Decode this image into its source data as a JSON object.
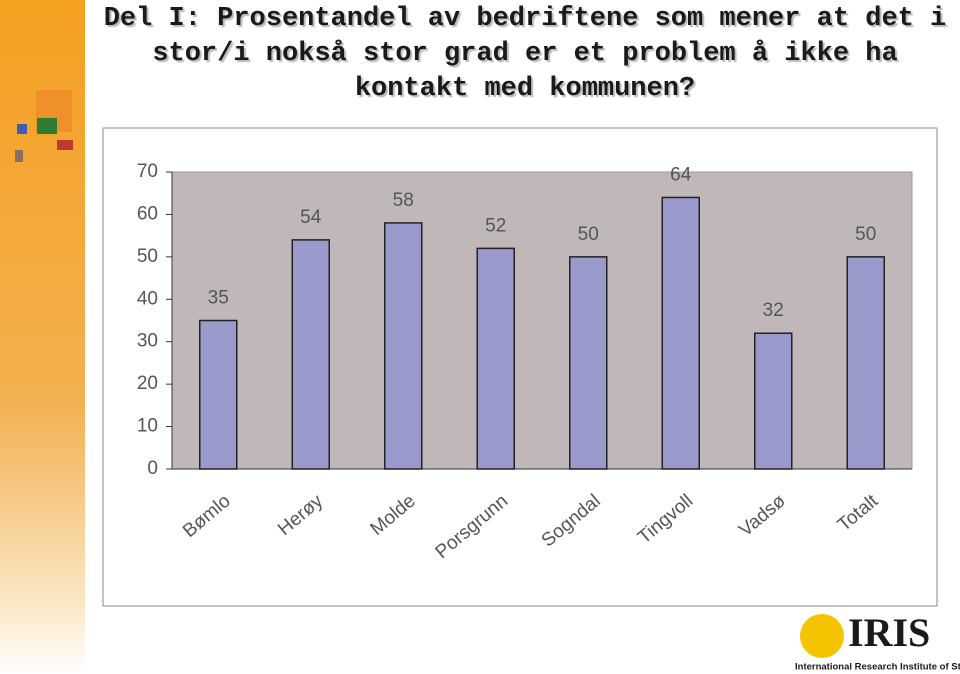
{
  "slide_title": "Del I: Prosentandel av bedriftene som mener at det i stor/i nokså stor grad er et problem å ikke ha kontakt med kommunen?",
  "chart_data": {
    "type": "bar",
    "categories": [
      "Bømlo",
      "Herøy",
      "Molde",
      "Porsgrunn",
      "Sogndal",
      "Tingvoll",
      "Vadsø",
      "Totalt"
    ],
    "values": [
      35,
      54,
      58,
      52,
      50,
      64,
      32,
      50
    ],
    "color": "#9999cc",
    "ylim": [
      0,
      70
    ],
    "yticks": [
      0,
      10,
      20,
      30,
      40,
      50,
      60,
      70
    ],
    "grid": false
  },
  "logo": {
    "name": "IRIS",
    "subtitle": "International Research Institute of Stavanger"
  }
}
